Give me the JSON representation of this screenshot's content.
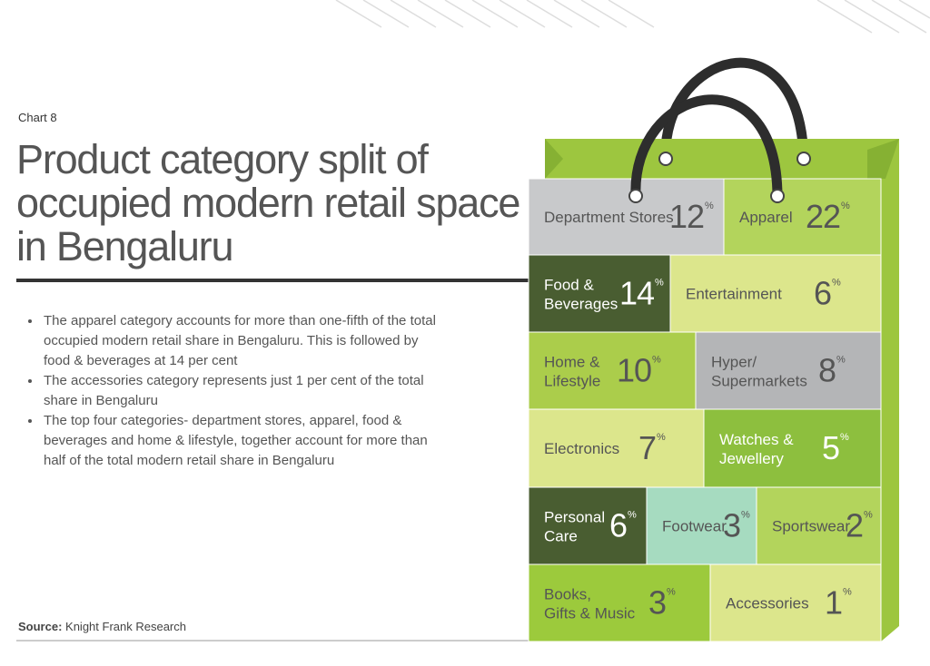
{
  "chart_data": {
    "type": "treemap",
    "chart_label": "Chart 8",
    "title": "Product category split of occupied modern retail space in Bengaluru",
    "notes": [
      "The apparel category accounts for more than one-fifth of the total occupied modern retail share in Bengaluru. This is followed by food & beverages at 14 per cent",
      "The accessories category represents just 1 per cent of the total share in Bengaluru",
      "The top four categories- department stores, apparel, food & beverages and home & lifestyle, together account for more than half of the total modern retail share in Bengaluru"
    ],
    "source_label": "Source:",
    "source": "Knight Frank Research",
    "unit": "%",
    "categories": [
      "Department Stores",
      "Apparel",
      "Food & Beverages",
      "Entertainment",
      "Home & Lifestyle",
      "Hyper/ Supermarkets",
      "Electronics",
      "Watches & Jewellery",
      "Personal Care",
      "Footwear",
      "Sportswear",
      "Books, Gifts & Music",
      "Accessories"
    ],
    "values": [
      12,
      22,
      14,
      6,
      10,
      8,
      7,
      5,
      6,
      3,
      2,
      3,
      1
    ],
    "colors": [
      "#c8c9cb",
      "#b3d45c",
      "#495d31",
      "#dce68c",
      "#abcd4b",
      "#b4b5b7",
      "#dce68c",
      "#8dbf3e",
      "#495d31",
      "#a6dbc0",
      "#b3d45c",
      "#9cca3c",
      "#dce68c"
    ]
  }
}
